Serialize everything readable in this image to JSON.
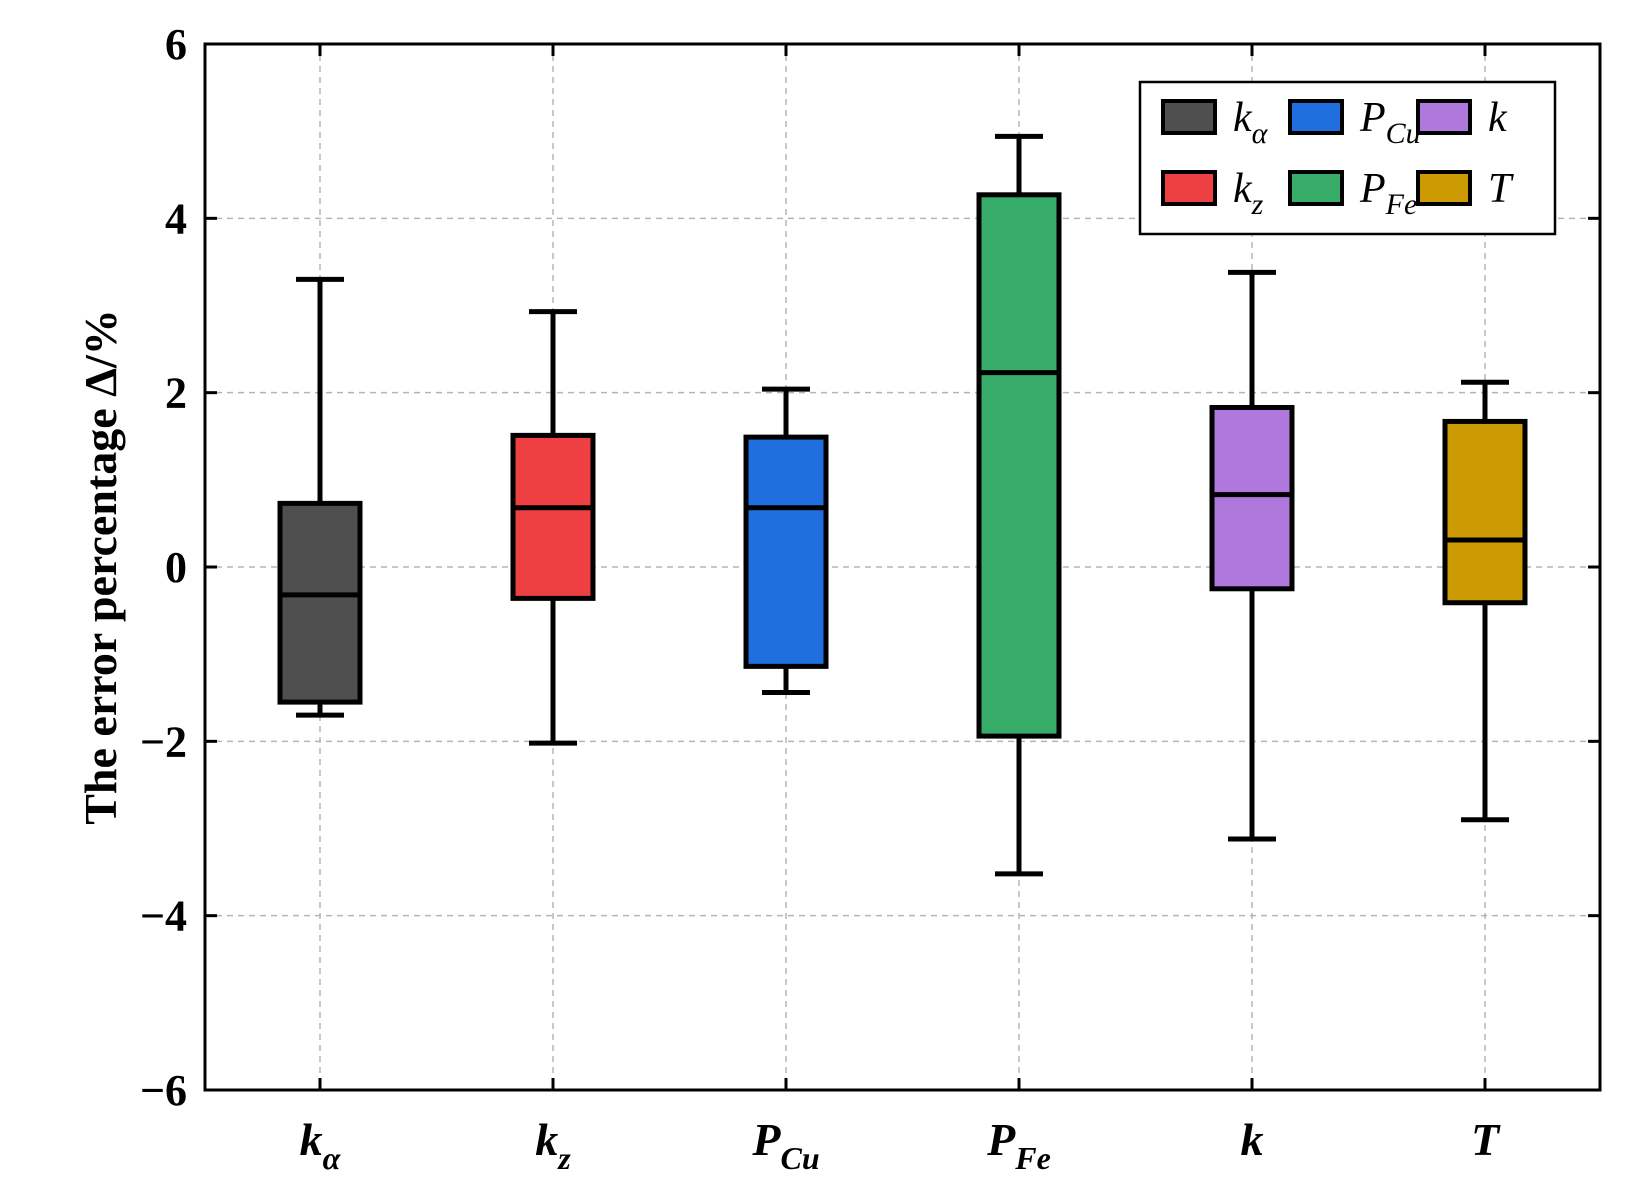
{
  "chart_data": {
    "type": "box",
    "title": "",
    "xlabel": "",
    "ylabel": "The error percentage Δ/%",
    "ylim": [
      -6,
      6
    ],
    "yticks": [
      6,
      4,
      2,
      0,
      -2,
      -4,
      -6
    ],
    "ytick_labels": [
      "6",
      "4",
      "2",
      "0",
      "−2",
      "−4",
      "−6"
    ],
    "grid": true,
    "legend_position": "top-right",
    "categories": [
      {
        "main": "k",
        "sub": "α"
      },
      {
        "main": "k",
        "sub": "z"
      },
      {
        "main": "P",
        "sub": "Cu"
      },
      {
        "main": "P",
        "sub": "Fe"
      },
      {
        "main": "k",
        "sub": ""
      },
      {
        "main": "T",
        "sub": ""
      }
    ],
    "series": [
      {
        "name": "kα",
        "color": "#4f4f4f",
        "whisker_low": -1.7,
        "q1": -1.55,
        "median": -0.32,
        "q3": 0.73,
        "whisker_high": 3.3
      },
      {
        "name": "kz",
        "color": "#ee4043",
        "whisker_low": -2.02,
        "q1": -0.36,
        "median": 0.68,
        "q3": 1.51,
        "whisker_high": 2.93
      },
      {
        "name": "PCu",
        "color": "#1f6fde",
        "whisker_low": -1.44,
        "q1": -1.14,
        "median": 0.68,
        "q3": 1.49,
        "whisker_high": 2.04
      },
      {
        "name": "PFe",
        "color": "#37ac69",
        "whisker_low": -3.52,
        "q1": -1.94,
        "median": 2.23,
        "q3": 4.27,
        "whisker_high": 4.94
      },
      {
        "name": "k",
        "color": "#ae78dd",
        "whisker_low": -3.12,
        "q1": -0.25,
        "median": 0.83,
        "q3": 1.83,
        "whisker_high": 3.38
      },
      {
        "name": "T",
        "color": "#cc9a03",
        "whisker_low": -2.9,
        "q1": -0.41,
        "median": 0.31,
        "q3": 1.67,
        "whisker_high": 2.12
      }
    ],
    "legend": [
      {
        "main": "k",
        "sub": "α",
        "color": "#4f4f4f"
      },
      {
        "main": "P",
        "sub": "Cu",
        "color": "#1f6fde"
      },
      {
        "main": "k",
        "sub": "",
        "color": "#ae78dd"
      },
      {
        "main": "k",
        "sub": "z",
        "color": "#ee4043"
      },
      {
        "main": "P",
        "sub": "Fe",
        "color": "#37ac69"
      },
      {
        "main": "T",
        "sub": "",
        "color": "#cc9a03"
      }
    ]
  }
}
